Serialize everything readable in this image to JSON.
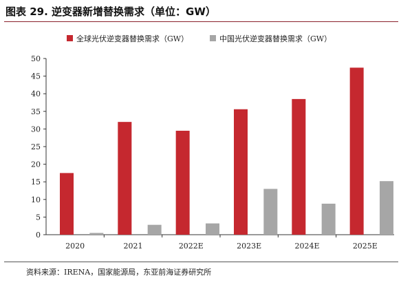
{
  "figure": {
    "title": "图表 29. 逆变器新增替换需求（单位：GW）",
    "source": "资料来源：IRENA，国家能源局，东亚前海证券研究所"
  },
  "colors": {
    "global": "#c5282f",
    "china": "#a6a6a6",
    "axis": "#333333"
  },
  "chart_data": {
    "type": "bar",
    "title": "",
    "xlabel": "",
    "ylabel": "",
    "ylim": [
      0,
      50
    ],
    "yticks": [
      0,
      5,
      10,
      15,
      20,
      25,
      30,
      35,
      40,
      45,
      50
    ],
    "grid": false,
    "legend_position": "top-center",
    "categories": [
      "2020",
      "2021",
      "2022E",
      "2023E",
      "2024E",
      "2025E"
    ],
    "series": [
      {
        "name": "全球光伏逆变器替换需求（GW）",
        "values": [
          17.5,
          32.0,
          29.5,
          35.6,
          38.5,
          47.4
        ]
      },
      {
        "name": "中国光伏逆变器替换需求（GW）",
        "values": [
          0.5,
          2.8,
          3.2,
          13.0,
          8.8,
          15.2
        ]
      }
    ]
  }
}
